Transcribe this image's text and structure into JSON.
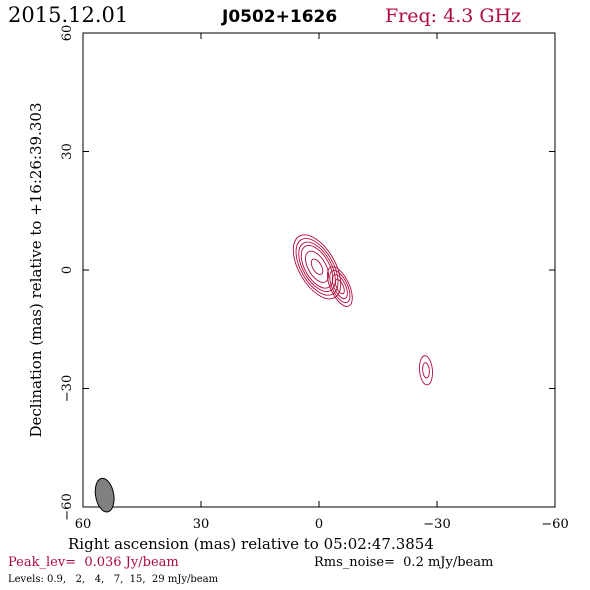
{
  "chart_data": {
    "type": "contour",
    "header": {
      "date": "2015.12.01",
      "source": "J0502+1626",
      "frequency": "Freq: 4.3 GHz"
    },
    "xlabel": "Right ascension (mas) relative to 05:02:47.3854",
    "ylabel": "Declination (mas) relative to +16:26:39.303",
    "xlim": [
      60,
      -60
    ],
    "ylim": [
      -60,
      60
    ],
    "x_ticks": [
      60,
      30,
      0,
      -30,
      -60
    ],
    "y_ticks": [
      60,
      30,
      0,
      -30,
      -60
    ],
    "x_tick_labels": [
      "60",
      "30",
      "0",
      "−30",
      "−60"
    ],
    "y_tick_labels": [
      "60",
      "30",
      "0",
      "−30",
      "−60"
    ],
    "peak_label": "Peak_lev=  0.036 Jy/beam",
    "rms_label": "Rms_noise=  0.2 mJy/beam",
    "levels_label": "Levels: 0.9,   2,   4,   7,  15,  29 mJy/beam",
    "levels_mjy": [
      0.9,
      2,
      4,
      7,
      15,
      29
    ],
    "components": [
      {
        "x": 0.5,
        "y": 0.8,
        "sigma_major": 3.3,
        "sigma_minor": 1.7,
        "pa": -30,
        "peak_mjy": 36
      },
      {
        "x": -5.3,
        "y": -4.2,
        "sigma_major": 2.5,
        "sigma_minor": 1.1,
        "pa": -25,
        "peak_mjy": 9.5
      },
      {
        "x": -27.2,
        "y": -25.4,
        "sigma_major": 2.5,
        "sigma_minor": 1.1,
        "pa": -5,
        "peak_mjy": 2.7
      }
    ],
    "beam": {
      "x": 54.5,
      "y": -57.0,
      "major": 4.3,
      "minor": 2.3,
      "pa": -10
    },
    "colors": {
      "contour": "#b00a3c",
      "frequency_text": "#b00a3c",
      "peak_text": "#b00a3c",
      "beam_fill": "#808080",
      "axes": "#000000"
    }
  }
}
